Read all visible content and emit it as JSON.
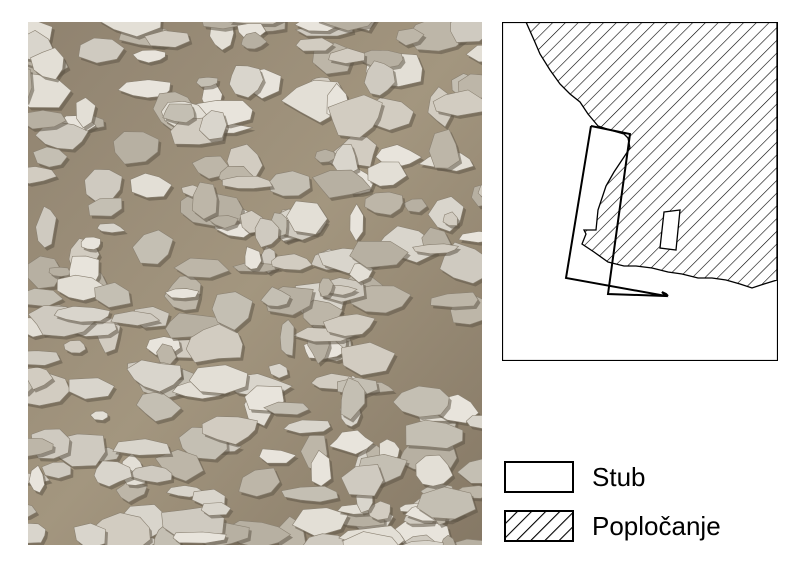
{
  "figure": {
    "photo": {
      "description_name": "aerial-photo-of-stone-paving"
    },
    "plan": {
      "feature_names": [
        "stub-outline",
        "paving-area",
        "gap-in-paving"
      ]
    },
    "legend": {
      "items": [
        {
          "label": "Stub",
          "swatch": "outline"
        },
        {
          "label": "Popločanje",
          "swatch": "hatched"
        }
      ]
    },
    "colors": {
      "stroke": "#000000",
      "background": "#ffffff"
    }
  }
}
